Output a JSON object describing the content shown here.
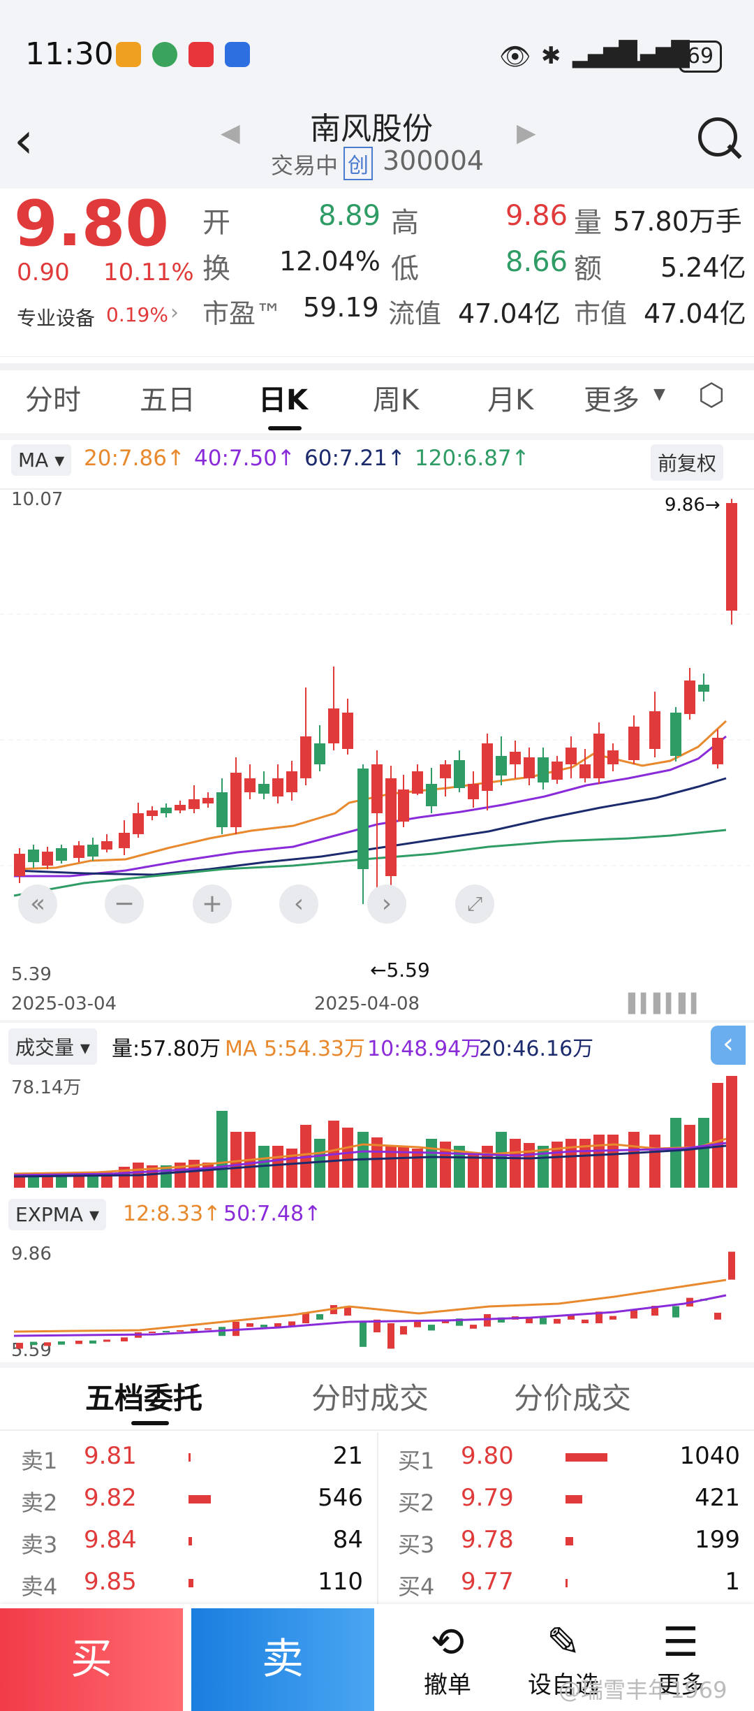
{
  "status": {
    "time": "11:30",
    "battery": "69"
  },
  "nav": {
    "title": "南风股份",
    "trading_status": "交易中",
    "board_badge": "创",
    "code": "300004"
  },
  "quote": {
    "price": "9.80",
    "change": "0.90",
    "change_pct": "10.11%",
    "sector_label": "专业设备",
    "sector_pct": "0.19%",
    "open_label": "开",
    "open": "8.89",
    "high_label": "高",
    "high": "9.86",
    "vol_label": "量",
    "vol": "57.80万手",
    "turnover_label": "换",
    "turnover": "12.04%",
    "low_label": "低",
    "low": "8.66",
    "amount_label": "额",
    "amount": "5.24亿",
    "pe_label": "市盈™",
    "pe": "59.19",
    "float_label": "流值",
    "float_val": "47.04亿",
    "mcap_label": "市值",
    "mcap": "47.04亿"
  },
  "tabs": [
    "分时",
    "五日",
    "日K",
    "周K",
    "月K",
    "更多"
  ],
  "active_tab": "日K",
  "ma_bar": {
    "label": "MA",
    "ma20": "20:7.86↑",
    "ma40": "40:7.50↑",
    "ma60": "60:7.21↑",
    "ma120": "120:6.87↑",
    "adjust": "前复权"
  },
  "kchart": {
    "top_value": "10.07",
    "bottom_value": "5.39",
    "high_mark": "9.86→",
    "low_mark": "←5.59",
    "date_left": "2025-03-04",
    "date_mid": "2025-04-08"
  },
  "volume_bar": {
    "label": "成交量",
    "vol": "量:57.80万",
    "ma5": "MA 5:54.33万",
    "ma10": "10:48.94万",
    "ma20": "20:46.16万",
    "top_value": "78.14万"
  },
  "expma_bar": {
    "label": "EXPMA",
    "e12": "12:8.33↑",
    "e50": "50:7.48↑",
    "top_value": "9.86",
    "bottom_value": "5.59"
  },
  "book_tabs": [
    "五档委托",
    "分时成交",
    "分价成交"
  ],
  "asks": [
    {
      "label": "卖1",
      "price": "9.81",
      "vol": "21",
      "bar": 0.02
    },
    {
      "label": "卖2",
      "price": "9.82",
      "vol": "546",
      "bar": 0.53
    },
    {
      "label": "卖3",
      "price": "9.84",
      "vol": "84",
      "bar": 0.08
    },
    {
      "label": "卖4",
      "price": "9.85",
      "vol": "110",
      "bar": 0.11
    }
  ],
  "bids": [
    {
      "label": "买1",
      "price": "9.80",
      "vol": "1040",
      "bar": 1.0
    },
    {
      "label": "买2",
      "price": "9.79",
      "vol": "421",
      "bar": 0.4
    },
    {
      "label": "买3",
      "price": "9.78",
      "vol": "199",
      "bar": 0.19
    },
    {
      "label": "买4",
      "price": "9.77",
      "vol": "1",
      "bar": 0.01
    }
  ],
  "bottom": {
    "buy": "买",
    "sell": "卖",
    "cancel": "撤单",
    "watch": "设自选",
    "more": "更多"
  },
  "watermark": "@瑞雪丰年1969",
  "colors": {
    "up": "#e03a3a",
    "down": "#2f9c66",
    "buy_btn": "#f04a52",
    "sell_btn": "#2d8fe6",
    "ma20": "#e8892e",
    "ma40": "#8a2bd9",
    "ma60": "#1c2a6e",
    "ma120": "#2f9c66"
  }
}
